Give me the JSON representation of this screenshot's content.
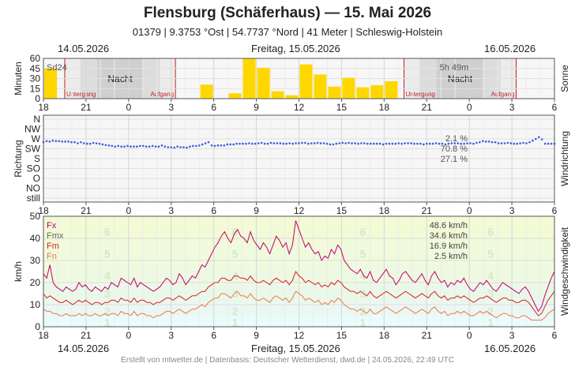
{
  "header": {
    "title": "Flensburg (Schäferhaus)  —  15. Mai 2026",
    "subtitle": "01379  |  9.3753 °Ost  |  54.7737 °Nord  |  41 Meter  |  Schleswig-Holstein"
  },
  "dates": {
    "left": "14.05.2026",
    "center": "Freitag, 15.05.2026",
    "right": "16.05.2026"
  },
  "footer": "Erstellt von mtwetter.de | Datenbasis: Deutscher Wetterdienst, dwd.de | 24.05.2026, 22:49 UTC",
  "chart_data": [
    {
      "type": "bar",
      "name": "sun",
      "ylabel": "Minuten",
      "right_label": "Sonne",
      "ylim": [
        0,
        60
      ],
      "yticks": [
        0,
        15,
        30,
        45,
        60
      ],
      "x_hours_since_start": [
        0,
        1,
        2,
        3,
        4,
        5,
        6,
        7,
        8,
        9,
        10,
        11,
        12,
        13,
        14,
        15,
        16,
        17,
        18,
        19,
        20,
        21,
        22,
        23,
        24,
        25,
        26,
        27,
        28,
        29,
        30,
        31,
        32,
        33,
        34,
        35,
        36
      ],
      "values": [
        45,
        0,
        0,
        0,
        0,
        0,
        0,
        0,
        0,
        0,
        0,
        21,
        0,
        8,
        60,
        46,
        11,
        5,
        51,
        36,
        18,
        31,
        17,
        20,
        26,
        0,
        0,
        0,
        0,
        0,
        0,
        0,
        0,
        0,
        0,
        0,
        0
      ],
      "sum_left": "Sd24",
      "sum_right": "5h 49m",
      "night_label": "Nacht",
      "sunset_label": "Untergang",
      "sunrise_label": "Aufgang",
      "nights": [
        [
          1.5,
          9.3
        ],
        [
          25.4,
          33.3
        ]
      ],
      "color": "#ffd700"
    },
    {
      "type": "scatter",
      "name": "wind_direction",
      "ylabel": "Richtung",
      "right_label": "Windrichtung",
      "categories": [
        "N",
        "NW",
        "W",
        "SW",
        "S",
        "SO",
        "O",
        "NO",
        "still"
      ],
      "values_deg": [
        255,
        260,
        258,
        262,
        260,
        260,
        258,
        258,
        258,
        255,
        255,
        250,
        255,
        250,
        248,
        248,
        252,
        250,
        248,
        245,
        242,
        240,
        238,
        235,
        238,
        235,
        235,
        238,
        235,
        235,
        235,
        238,
        238,
        235,
        235,
        238,
        235,
        235,
        240,
        235,
        232,
        232,
        230,
        235,
        232,
        232,
        230,
        235,
        238,
        238,
        240,
        245,
        250,
        255,
        240,
        238,
        240,
        240,
        240,
        245,
        245,
        245,
        248,
        248,
        248,
        248,
        250,
        248,
        248,
        250,
        252,
        248,
        248,
        252,
        250,
        250,
        250,
        248,
        248,
        250,
        248,
        250,
        250,
        252,
        252,
        248,
        250,
        250,
        252,
        250,
        250,
        248,
        245,
        245,
        248,
        250,
        252,
        250,
        252,
        250,
        250,
        248,
        250,
        250,
        248,
        248,
        248,
        248,
        248,
        245,
        248,
        248,
        248,
        248,
        250,
        248,
        250,
        250,
        250,
        248,
        248,
        248,
        245,
        248,
        248,
        248,
        250,
        248,
        248,
        245,
        248,
        250,
        250,
        250,
        248,
        248,
        250,
        250,
        248,
        252,
        255,
        260,
        258,
        258,
        255,
        255,
        250,
        250,
        250,
        252,
        250,
        248,
        248,
        250,
        252,
        250,
        255,
        262,
        270,
        278,
        268,
        248,
        248,
        248,
        248
      ],
      "stats": [
        "2.1 %",
        "70.8 %",
        "27.1 %"
      ],
      "color": "#3a5fd8"
    },
    {
      "type": "line",
      "name": "wind_speed",
      "ylabel": "km/h",
      "right_label": "Windgeschwindigkeit",
      "ylim": [
        0,
        50
      ],
      "yticks": [
        0,
        10,
        20,
        30,
        40,
        50
      ],
      "bft_labels": [
        "1",
        "2",
        "3",
        "4",
        "5",
        "6"
      ],
      "series": [
        {
          "name": "Fx",
          "color": "#c0006a",
          "max_label": "48.6 km/h",
          "values": [
            24,
            22,
            28,
            20,
            18,
            17,
            16,
            18,
            17,
            16,
            17,
            20,
            18,
            19,
            17,
            16,
            18,
            17,
            16,
            18,
            17,
            20,
            19,
            18,
            22,
            21,
            20,
            19,
            22,
            18,
            20,
            19,
            18,
            17,
            16,
            17,
            18,
            20,
            22,
            21,
            19,
            20,
            24,
            22,
            19,
            21,
            23,
            22,
            25,
            28,
            27,
            30,
            33,
            36,
            38,
            41,
            43,
            40,
            38,
            42,
            44,
            41,
            40,
            38,
            43,
            39,
            37,
            35,
            38,
            36,
            33,
            37,
            41,
            39,
            36,
            38,
            33,
            37,
            48,
            44,
            40,
            36,
            38,
            35,
            33,
            34,
            30,
            32,
            31,
            35,
            33,
            37,
            35,
            30,
            28,
            26,
            25,
            24,
            26,
            23,
            22,
            25,
            21,
            20,
            22,
            24,
            26,
            23,
            22,
            19,
            21,
            24,
            25,
            23,
            21,
            20,
            22,
            24,
            21,
            19,
            23,
            25,
            22,
            20,
            21,
            18,
            20,
            19,
            21,
            20,
            22,
            19,
            17,
            16,
            18,
            20,
            19,
            21,
            19,
            17,
            16,
            18,
            20,
            19,
            18,
            17,
            16,
            15,
            17,
            18,
            16,
            13,
            10,
            7,
            9,
            14,
            18,
            22,
            25
          ]
        },
        {
          "name": "Fmx",
          "color": "#666666",
          "max_label": "34.6 km/h"
        },
        {
          "name": "Fm",
          "color": "#dc1e1e",
          "max_label": "16.9 km/h",
          "values": [
            15,
            13,
            14,
            13,
            12,
            11,
            11,
            12,
            11,
            10,
            11,
            12,
            11,
            12,
            11,
            10,
            11,
            11,
            10,
            11,
            11,
            12,
            12,
            11,
            13,
            12,
            12,
            11,
            13,
            11,
            12,
            12,
            11,
            11,
            10,
            11,
            11,
            12,
            13,
            13,
            12,
            13,
            14,
            13,
            12,
            13,
            14,
            14,
            15,
            16,
            16,
            18,
            19,
            20,
            20,
            22,
            22,
            21,
            21,
            23,
            23,
            22,
            22,
            21,
            23,
            21,
            20,
            20,
            21,
            20,
            19,
            21,
            22,
            21,
            20,
            21,
            19,
            21,
            25,
            23,
            22,
            20,
            21,
            20,
            19,
            20,
            18,
            19,
            18,
            20,
            19,
            21,
            20,
            18,
            17,
            16,
            16,
            15,
            16,
            15,
            14,
            16,
            14,
            13,
            14,
            15,
            16,
            15,
            14,
            13,
            14,
            15,
            16,
            15,
            14,
            13,
            14,
            15,
            14,
            13,
            15,
            16,
            14,
            13,
            14,
            12,
            13,
            13,
            14,
            13,
            14,
            13,
            12,
            11,
            12,
            13,
            13,
            14,
            13,
            12,
            11,
            12,
            13,
            13,
            12,
            12,
            11,
            11,
            12,
            12,
            11,
            9,
            7,
            5,
            6,
            9,
            12,
            14,
            16
          ]
        },
        {
          "name": "Fn",
          "color": "#f07840",
          "max_label": "2.5 km/h",
          "values": [
            8,
            7,
            7,
            6,
            6,
            5,
            5,
            6,
            5,
            5,
            5,
            6,
            5,
            6,
            5,
            5,
            6,
            5,
            5,
            6,
            5,
            6,
            6,
            5,
            7,
            6,
            6,
            5,
            7,
            5,
            6,
            6,
            5,
            5,
            4,
            5,
            5,
            6,
            7,
            7,
            6,
            7,
            8,
            7,
            6,
            7,
            8,
            8,
            9,
            10,
            9,
            11,
            12,
            13,
            13,
            15,
            15,
            14,
            13,
            15,
            16,
            14,
            14,
            13,
            15,
            13,
            12,
            12,
            13,
            12,
            11,
            13,
            14,
            13,
            12,
            13,
            11,
            13,
            16,
            15,
            14,
            12,
            13,
            12,
            11,
            12,
            10,
            11,
            10,
            12,
            11,
            13,
            12,
            10,
            9,
            8,
            8,
            7,
            8,
            7,
            6,
            8,
            6,
            6,
            7,
            8,
            9,
            8,
            7,
            6,
            7,
            8,
            9,
            8,
            7,
            6,
            7,
            8,
            7,
            6,
            8,
            9,
            7,
            6,
            7,
            5,
            6,
            6,
            7,
            6,
            7,
            6,
            5,
            5,
            6,
            7,
            6,
            7,
            6,
            5,
            4,
            5,
            6,
            6,
            5,
            5,
            4,
            4,
            5,
            5,
            4,
            3,
            3,
            3,
            3,
            4,
            6,
            7,
            8
          ]
        }
      ]
    }
  ],
  "x_axis_ticks": [
    "18",
    "21",
    "0",
    "3",
    "6",
    "9",
    "12",
    "15",
    "18",
    "21",
    "0",
    "3",
    "6"
  ]
}
